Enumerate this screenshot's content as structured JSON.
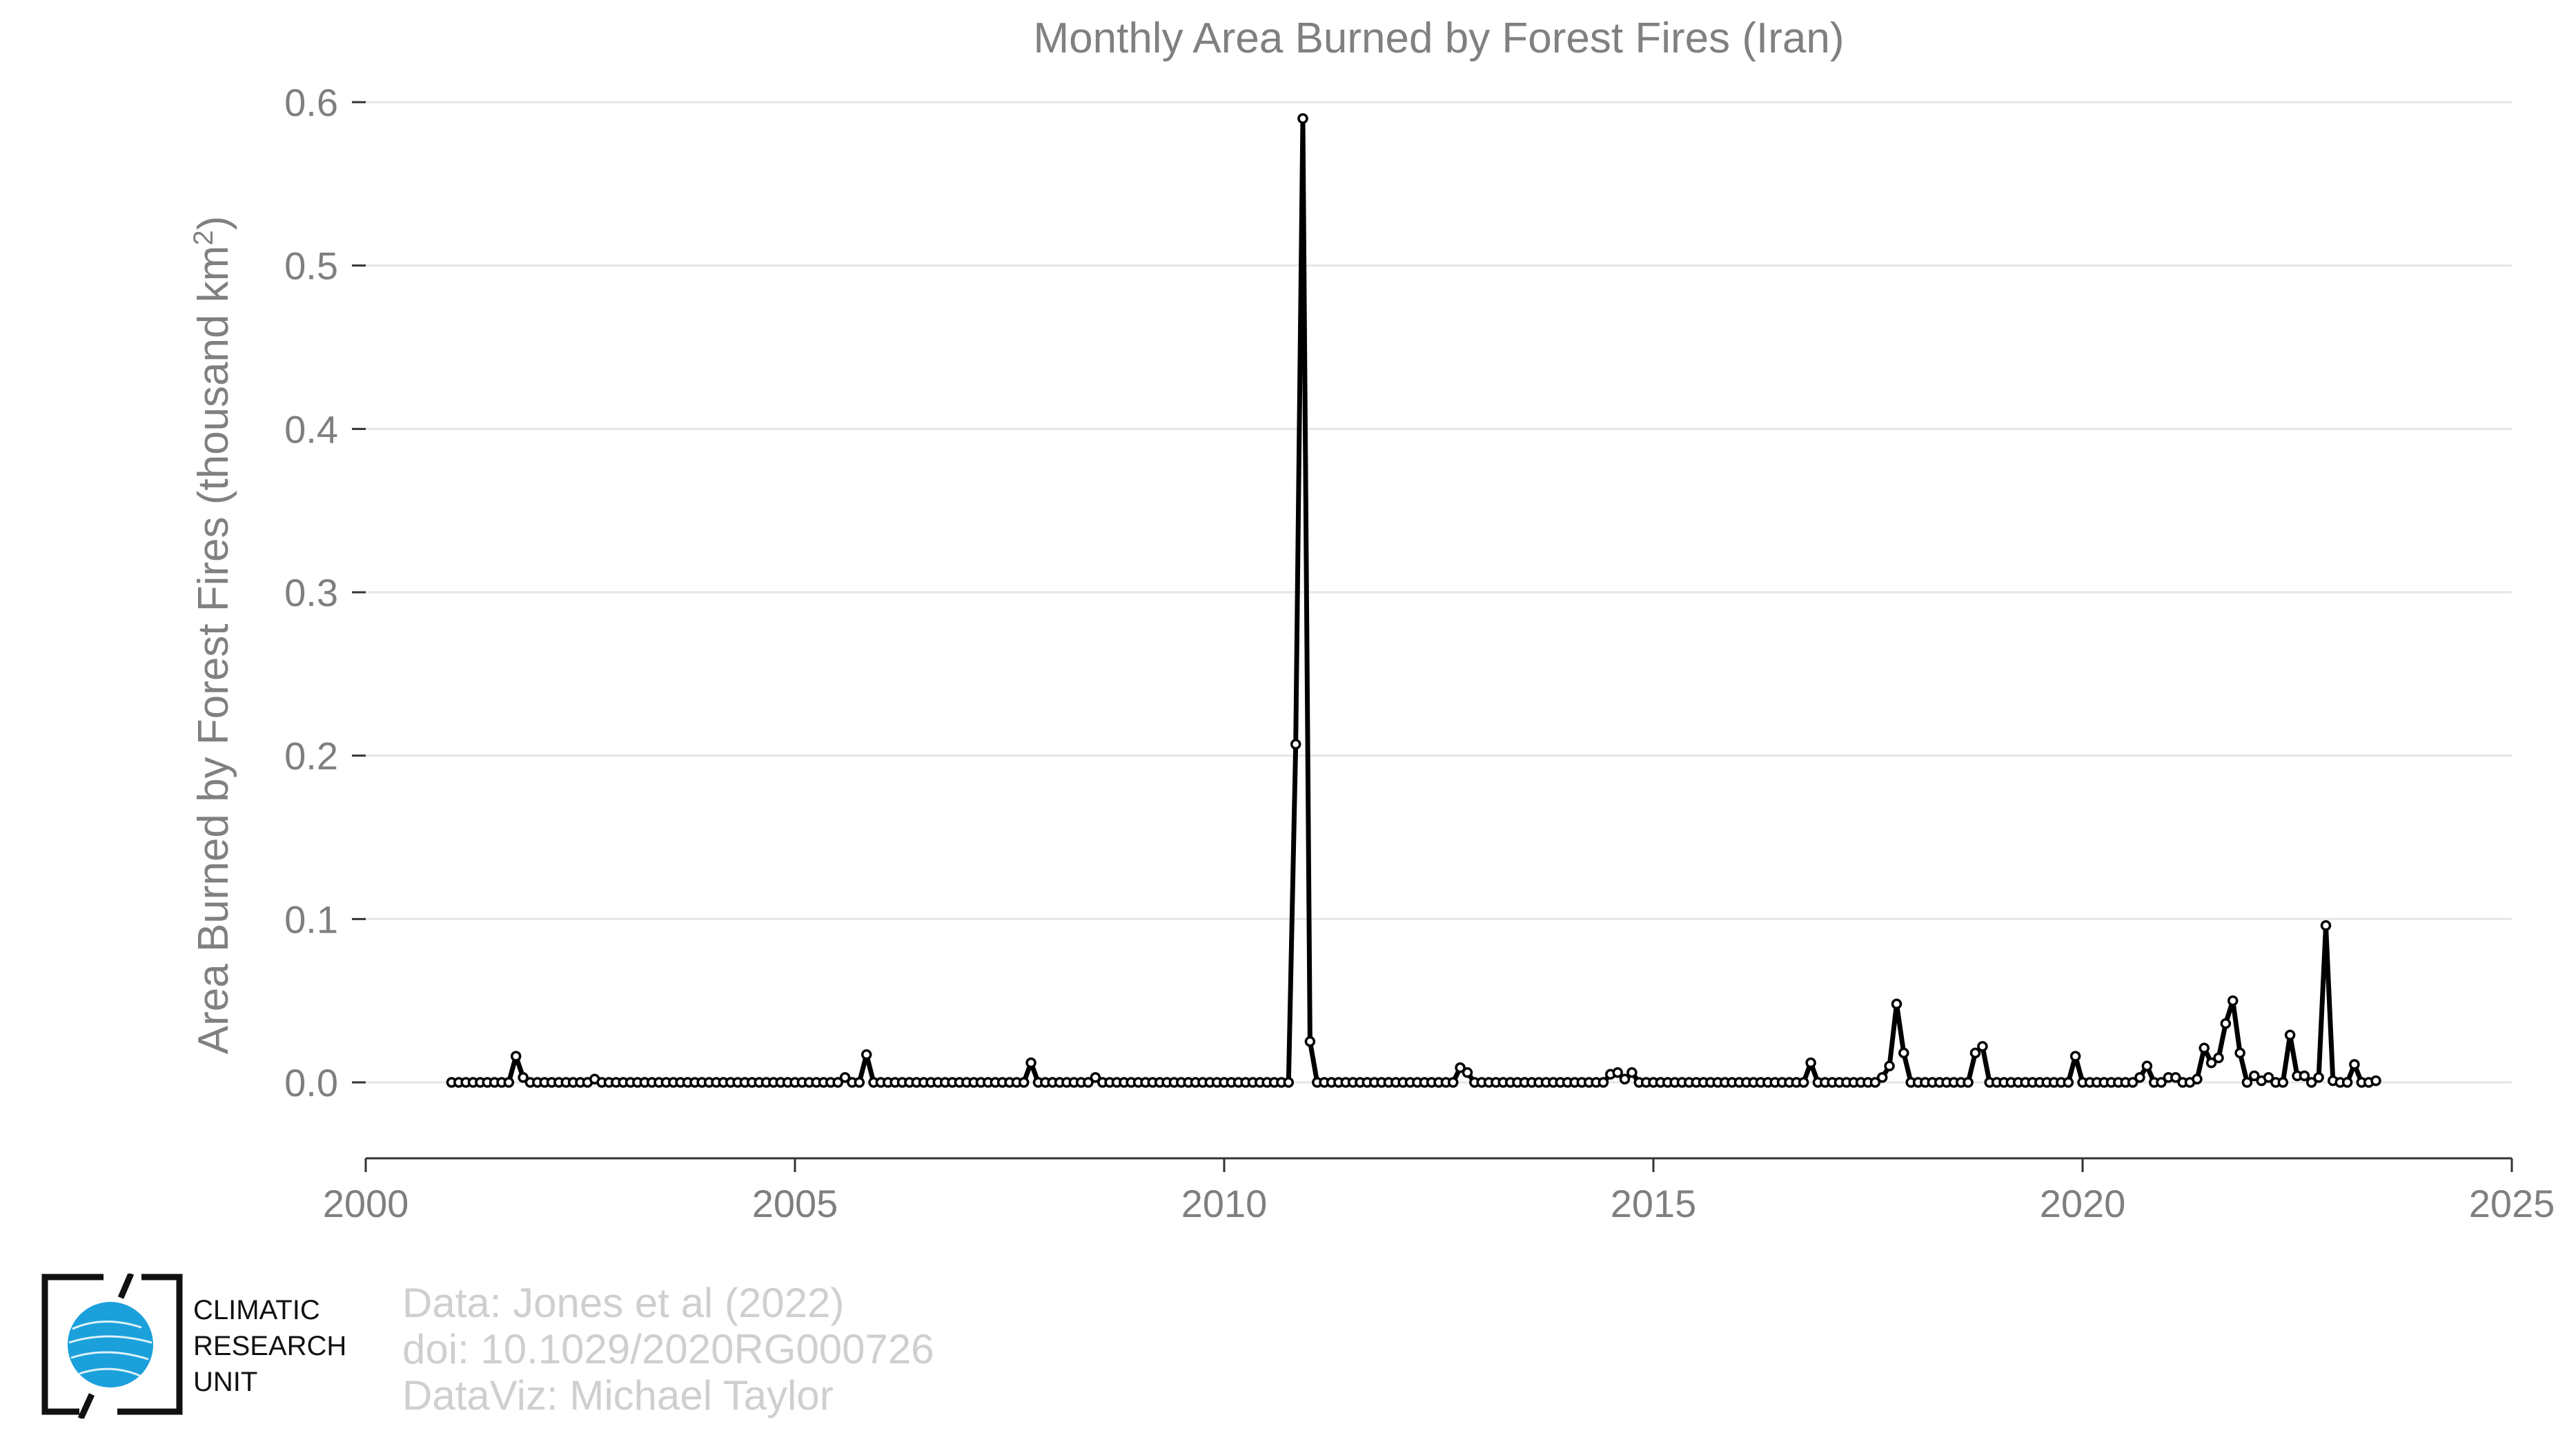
{
  "chart_data": {
    "type": "line",
    "title": "Monthly Area Burned by Forest Fires (Iran)",
    "ylabel_main": "Area Burned by Forest Fires (thousand km",
    "ylabel_sup": "2",
    "ylabel_close": ")",
    "xlabel": "",
    "xlim": [
      2000,
      2025
    ],
    "ylim": [
      0,
      0.6
    ],
    "x_ticks": [
      2000,
      2005,
      2010,
      2015,
      2020,
      2025
    ],
    "y_ticks": [
      0.0,
      0.1,
      0.2,
      0.3,
      0.4,
      0.5,
      0.6
    ],
    "x_tick_labels": [
      "2000",
      "2005",
      "2010",
      "2015",
      "2020",
      "2025"
    ],
    "y_tick_labels": [
      "0.0",
      "0.1",
      "0.2",
      "0.3",
      "0.4",
      "0.5",
      "0.6"
    ],
    "grid": "horizontal",
    "legend": "none",
    "series_color": "#000000",
    "marker_fill": "#ffffff",
    "series": [
      {
        "start_year": 2001,
        "start_month": 1,
        "values": [
          0,
          0,
          0,
          0,
          0,
          0,
          0,
          0,
          0,
          0.016,
          0.003,
          0,
          0,
          0,
          0,
          0,
          0,
          0,
          0,
          0,
          0.002,
          0,
          0,
          0,
          0,
          0,
          0,
          0,
          0,
          0,
          0,
          0,
          0,
          0,
          0,
          0,
          0,
          0,
          0,
          0,
          0,
          0,
          0,
          0,
          0,
          0,
          0,
          0,
          0,
          0,
          0,
          0,
          0,
          0,
          0,
          0.003,
          0,
          0,
          0.017,
          0,
          0,
          0,
          0,
          0,
          0,
          0,
          0,
          0,
          0,
          0,
          0,
          0,
          0,
          0,
          0,
          0,
          0,
          0,
          0,
          0,
          0,
          0.012,
          0,
          0,
          0,
          0,
          0,
          0,
          0,
          0,
          0.003,
          0,
          0,
          0,
          0,
          0,
          0,
          0,
          0,
          0,
          0,
          0,
          0,
          0,
          0,
          0,
          0,
          0,
          0,
          0,
          0,
          0,
          0,
          0,
          0,
          0,
          0,
          0,
          0.207,
          0.59,
          0.025,
          0,
          0,
          0,
          0,
          0,
          0,
          0,
          0,
          0,
          0,
          0,
          0,
          0,
          0,
          0,
          0,
          0,
          0,
          0,
          0,
          0.009,
          0.006,
          0,
          0,
          0,
          0,
          0,
          0,
          0,
          0,
          0,
          0,
          0,
          0,
          0,
          0,
          0,
          0,
          0,
          0,
          0,
          0.005,
          0.006,
          0.002,
          0.006,
          0,
          0,
          0,
          0,
          0,
          0,
          0,
          0,
          0,
          0,
          0,
          0,
          0,
          0,
          0,
          0,
          0,
          0,
          0,
          0,
          0,
          0,
          0,
          0,
          0.012,
          0,
          0,
          0,
          0,
          0,
          0,
          0,
          0,
          0,
          0.003,
          0.01,
          0.048,
          0.018,
          0,
          0,
          0,
          0,
          0,
          0,
          0,
          0,
          0,
          0.018,
          0.022,
          0,
          0,
          0,
          0,
          0,
          0,
          0,
          0,
          0,
          0,
          0,
          0,
          0.016,
          0,
          0,
          0,
          0,
          0,
          0,
          0,
          0,
          0.003,
          0.01,
          0,
          0,
          0.003,
          0.003,
          0,
          0,
          0.002,
          0.021,
          0.012,
          0.015,
          0.036,
          0.05,
          0.018,
          0,
          0.004,
          0.001,
          0.003,
          0,
          0,
          0.029,
          0.004,
          0.004,
          0,
          0.003,
          0.096,
          0.001,
          0,
          0,
          0.011,
          0,
          0,
          0.001
        ]
      }
    ]
  },
  "credits": {
    "line1": "Data: Jones et al (2022)",
    "line2": "doi: 10.1029/2020RG000726",
    "line3": "DataViz: Michael Taylor"
  },
  "logo": {
    "line1": "CLIMATIC",
    "line2": "RESEARCH",
    "line3": "UNIT",
    "globe_color": "#1ba0dc"
  }
}
